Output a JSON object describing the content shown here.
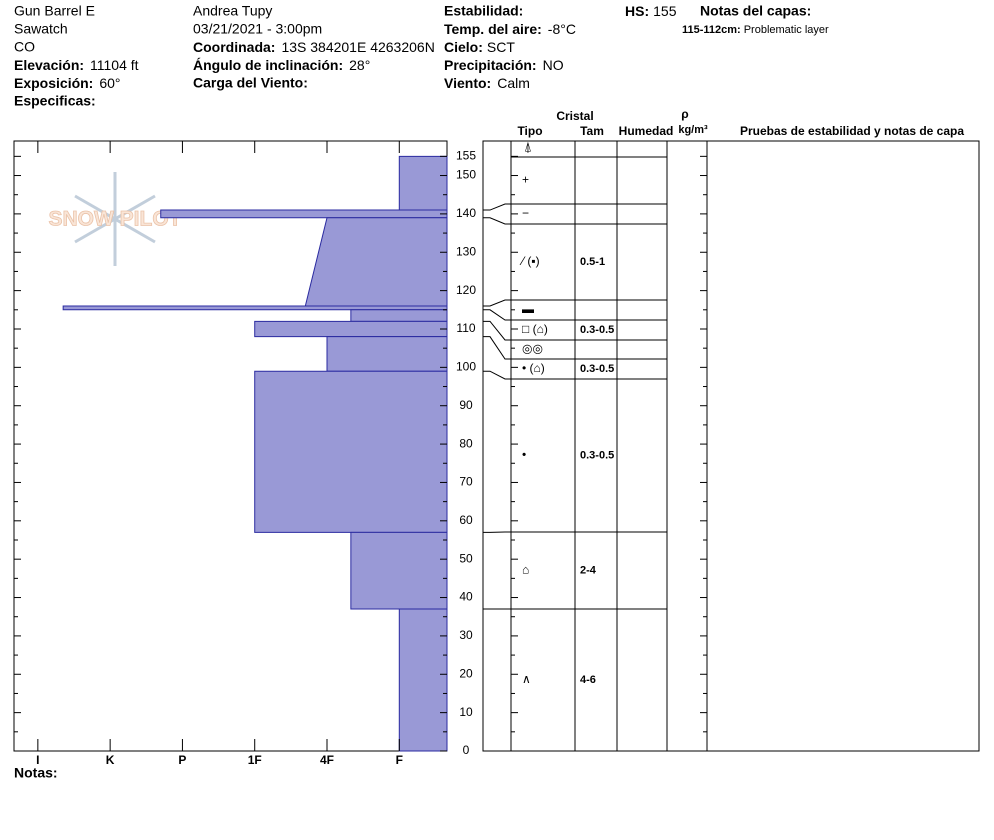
{
  "header": {
    "location": [
      "Gun Barrel E",
      "Sawatch",
      "CO"
    ],
    "elevation": {
      "label": "Elevación:",
      "value": "11104 ft"
    },
    "aspect": {
      "label": "Exposición:",
      "value": "60°"
    },
    "specifics": {
      "label": "Especificas:"
    },
    "observer": "Andrea Tupy",
    "datetime": "03/21/2021 - 3:00pm",
    "coordinate": {
      "label": "Coordinada:",
      "value": "13S 384201E 4263206N"
    },
    "slope_angle": {
      "label": "Ángulo de inclinación:",
      "value": "28°"
    },
    "wind_loading": {
      "label": "Carga del Viento:"
    },
    "stability": {
      "label": "Estabilidad:"
    },
    "air_temp": {
      "label": "Temp. del aire:",
      "value": "-8°C"
    },
    "sky": {
      "label": "Cielo:",
      "value": "SCT"
    },
    "precipitation": {
      "label": "Precipitación:",
      "value": "NO"
    },
    "wind": {
      "label": "Viento:",
      "value": "Calm"
    },
    "hs": {
      "label": "HS:",
      "value": "155"
    },
    "layer_notes_title": "Notas del capas:",
    "layer_note": {
      "label": "115-112cm:",
      "value": "Problematic layer"
    }
  },
  "logo": "SNOW PILOT",
  "notes_label": "Notas:",
  "table_headers": {
    "crystal": "Cristal",
    "type": "Tipo",
    "size": "Tam",
    "moisture": "Humedad",
    "rho": "ρ",
    "rho_unit": "kg/m³",
    "tests": "Pruebas de estabilidad y notas de capa"
  },
  "surface_symbol": "⍋",
  "chart_data": {
    "type": "snow-profile",
    "ylim": [
      0,
      159
    ],
    "yticks": [
      0,
      10,
      20,
      30,
      40,
      50,
      60,
      70,
      80,
      90,
      100,
      110,
      120,
      130,
      140,
      150,
      155
    ],
    "yticks_minor": [
      5,
      15,
      25,
      35,
      45,
      55,
      65,
      75,
      85,
      95,
      105,
      115,
      125,
      135,
      145
    ],
    "xlim": [
      6.33,
      0.34
    ],
    "xticks": [
      {
        "value": 6,
        "label": "I"
      },
      {
        "value": 5,
        "label": "K"
      },
      {
        "value": 4,
        "label": "P"
      },
      {
        "value": 3,
        "label": "1F"
      },
      {
        "value": 2,
        "label": "4F"
      },
      {
        "value": 1,
        "label": "F"
      }
    ],
    "color": "#9999d6",
    "layers": [
      {
        "top": 155,
        "bottom": 141,
        "hardness": 1,
        "grain": "+"
      },
      {
        "top": 141,
        "bottom": 139,
        "hardness": 4.3,
        "grain": "−"
      },
      {
        "top": 139,
        "bottom": 116,
        "hardness": 2,
        "hardness_bottom": 2.3,
        "grain": "⁄ (▪)",
        "size": "0.5-1"
      },
      {
        "top": 116,
        "bottom": 115,
        "hardness": 5.65,
        "grain": "▬"
      },
      {
        "top": 115,
        "bottom": 112,
        "hardness": 1.67,
        "grain": "□ (⌂)",
        "size": "0.3-0.5"
      },
      {
        "top": 112,
        "bottom": 108,
        "hardness": 3,
        "grain": "◎◎"
      },
      {
        "top": 108,
        "bottom": 99,
        "hardness": 2,
        "grain": "• (⌂)",
        "size": "0.3-0.5"
      },
      {
        "top": 99,
        "bottom": 57,
        "hardness": 3,
        "grain": "•",
        "size": "0.3-0.5"
      },
      {
        "top": 57,
        "bottom": 37,
        "hardness": 1.67,
        "grain": "⌂",
        "size": "2-4"
      },
      {
        "top": 37,
        "bottom": 0,
        "hardness": 1,
        "grain": "∧",
        "size": "4-6"
      }
    ]
  }
}
